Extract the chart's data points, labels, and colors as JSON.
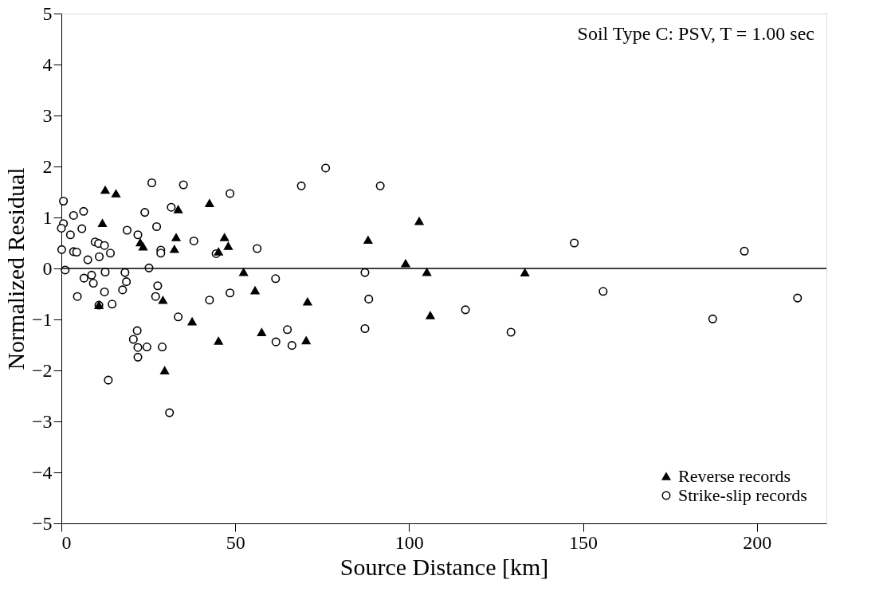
{
  "chart_data": {
    "type": "scatter",
    "xlabel": "Source Distance   [km]",
    "ylabel": "Normalized Residual",
    "annotations": [
      "Soil Type C: PSV, T = 1.00 sec"
    ],
    "xlim": [
      0,
      220
    ],
    "xticks": [
      0,
      50,
      100,
      150,
      200
    ],
    "ylim": [
      -5,
      5
    ],
    "yticks": [
      -5,
      -4,
      -3,
      -2,
      -1,
      0,
      1,
      2,
      3,
      4,
      5
    ],
    "grid": false,
    "legend": "bottom right",
    "ref_lines": [
      {
        "axis": "y",
        "value": 0,
        "color": "#000000"
      }
    ],
    "series": [
      {
        "name": "Reverse records",
        "color": "#000000",
        "marker": "triangle",
        "x": [
          12.6,
          15.7,
          11.8,
          22.7,
          23.5,
          10.8,
          29.2,
          29.7,
          33.0,
          32.5,
          33.6,
          42.6,
          46.9,
          48.0,
          45.2,
          52.4,
          55.7,
          37.6,
          45.2,
          57.6,
          102.9,
          88.2,
          99.0,
          105.1,
          133.3,
          70.8,
          106.1,
          70.4
        ],
        "values": [
          1.54,
          1.47,
          0.89,
          0.51,
          0.43,
          -0.72,
          -0.62,
          -2.0,
          0.61,
          0.38,
          1.16,
          1.28,
          0.61,
          0.44,
          0.33,
          -0.07,
          -0.43,
          -1.04,
          -1.42,
          -1.25,
          0.93,
          0.56,
          0.1,
          -0.07,
          -0.08,
          -0.65,
          -0.92,
          -1.41
        ]
      },
      {
        "name": "Strike-slip records",
        "color": "#000000",
        "marker": "circle",
        "x": [
          35.1,
          48.5,
          31.6,
          38.1,
          44.5,
          56.3,
          61.6,
          48.5,
          42.6,
          33.6,
          65.0,
          61.7,
          66.3,
          31.1,
          26.0,
          0.6,
          6.4,
          3.5,
          24.0,
          0.6,
          0,
          5.9,
          2.6,
          18.9,
          27.4,
          22.0,
          9.7,
          10.7,
          12.4,
          0.1,
          3.5,
          4.4,
          14.1,
          28.6,
          28.6,
          10.9,
          7.6,
          1.1,
          12.6,
          18.3,
          25.2,
          8.7,
          6.5,
          9.2,
          18.7,
          27.7,
          17.6,
          12.4,
          4.6,
          27.1,
          14.6,
          10.8,
          21.8,
          20.7,
          22.0,
          24.6,
          29.0,
          22.0,
          13.5,
          76.0,
          69.0,
          91.7,
          87.3,
          88.4,
          116.2,
          87.3,
          129.3,
          147.5,
          155.8,
          196.4,
          187.3,
          211.7
        ],
        "values": [
          1.64,
          1.47,
          1.2,
          0.54,
          0.29,
          0.39,
          -0.2,
          -0.48,
          -0.62,
          -0.95,
          -1.2,
          -1.44,
          -1.51,
          -2.83,
          1.68,
          1.32,
          1.12,
          1.04,
          1.1,
          0.88,
          0.79,
          0.78,
          0.66,
          0.75,
          0.82,
          0.66,
          0.52,
          0.49,
          0.45,
          0.37,
          0.33,
          0.32,
          0.3,
          0.36,
          0.3,
          0.23,
          0.17,
          -0.03,
          -0.07,
          -0.08,
          0.01,
          -0.13,
          -0.19,
          -0.29,
          -0.26,
          -0.34,
          -0.42,
          -0.46,
          -0.55,
          -0.55,
          -0.7,
          -0.72,
          -1.22,
          -1.39,
          -1.55,
          -1.54,
          -1.54,
          -1.74,
          -2.19,
          1.97,
          1.62,
          1.62,
          -0.08,
          -0.6,
          -0.81,
          -1.18,
          -1.25,
          0.5,
          -0.45,
          0.34,
          -0.99,
          -0.58
        ]
      }
    ]
  }
}
